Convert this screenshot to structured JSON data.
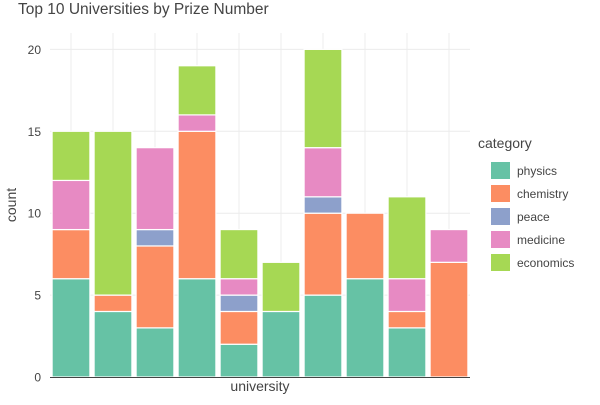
{
  "chart_data": {
    "type": "bar",
    "stacked": true,
    "title": "Top 10 Universities by Prize Number",
    "xlabel": "university",
    "ylabel": "count",
    "ylim": [
      0,
      21
    ],
    "yticks": [
      0,
      5,
      10,
      15,
      20
    ],
    "grid": true,
    "categories": [
      "",
      "",
      "",
      "",
      "",
      "",
      "",
      "",
      "",
      ""
    ],
    "legend_title": "category",
    "legend_position": "right",
    "series": [
      {
        "name": "physics",
        "color": "#66c2a5",
        "values": [
          6,
          4,
          3,
          6,
          2,
          4,
          5,
          6,
          3,
          0
        ]
      },
      {
        "name": "chemistry",
        "color": "#fc8d62",
        "values": [
          3,
          1,
          5,
          9,
          2,
          0,
          5,
          4,
          1,
          7
        ]
      },
      {
        "name": "peace",
        "color": "#8da0cb",
        "values": [
          0,
          0,
          1,
          0,
          1,
          0,
          1,
          0,
          0,
          0
        ]
      },
      {
        "name": "medicine",
        "color": "#e78ac3",
        "values": [
          3,
          0,
          5,
          1,
          1,
          0,
          3,
          0,
          2,
          2
        ]
      },
      {
        "name": "economics",
        "color": "#a6d854",
        "values": [
          3,
          10,
          0,
          3,
          3,
          3,
          6,
          0,
          5,
          0
        ]
      }
    ]
  }
}
